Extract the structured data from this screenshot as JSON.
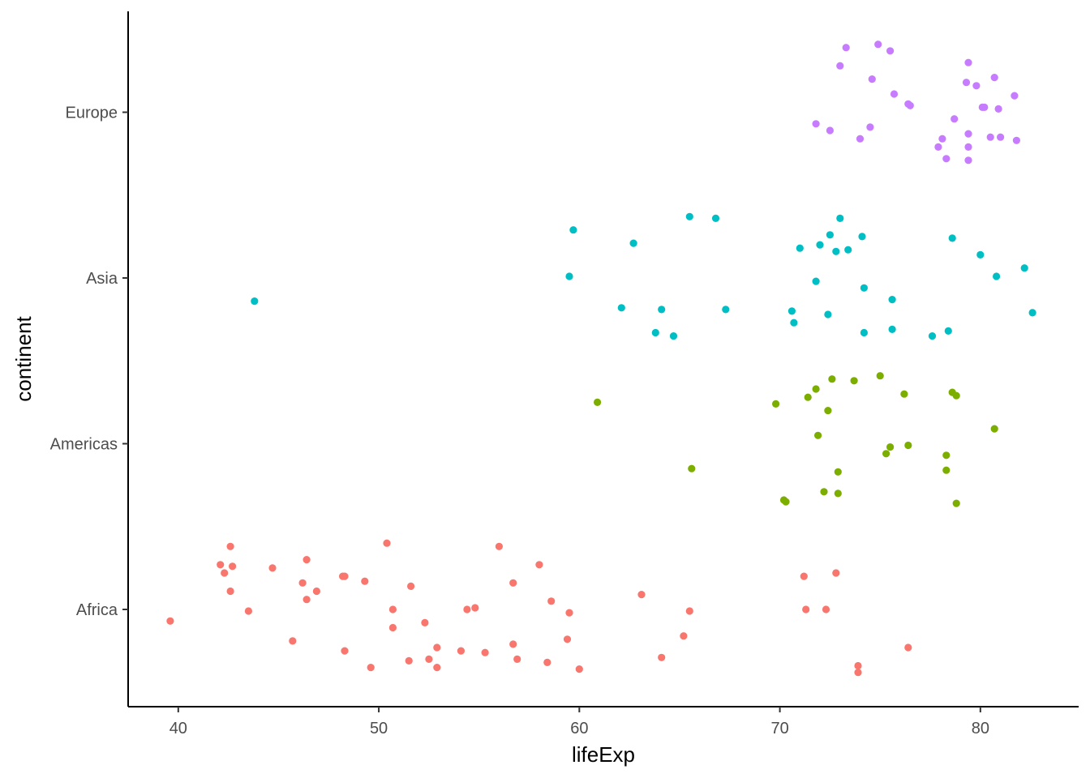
{
  "chart_data": {
    "type": "scatter",
    "jitter": "vertical jitter within each continent category",
    "xlabel": "lifeExp",
    "ylabel": "continent",
    "xlim": [
      37.5,
      84.9
    ],
    "xticks": [
      40,
      50,
      60,
      70,
      80
    ],
    "categories": [
      "Africa",
      "Americas",
      "Asia",
      "Europe"
    ],
    "grid": false,
    "legend": "none",
    "colors": {
      "Africa": "#F8766D",
      "Americas": "#7CAE00",
      "Asia": "#00BFC4",
      "Europe": "#C77CFF"
    },
    "series": [
      {
        "name": "Africa",
        "points": [
          [
            39.6,
            0.93
          ],
          [
            42.1,
            1.27
          ],
          [
            42.3,
            1.22
          ],
          [
            42.6,
            1.38
          ],
          [
            42.6,
            1.11
          ],
          [
            42.7,
            1.26
          ],
          [
            43.5,
            0.99
          ],
          [
            44.7,
            1.25
          ],
          [
            45.7,
            0.81
          ],
          [
            46.2,
            1.16
          ],
          [
            46.4,
            1.06
          ],
          [
            46.4,
            1.3
          ],
          [
            46.9,
            1.11
          ],
          [
            48.2,
            1.2
          ],
          [
            48.3,
            1.2
          ],
          [
            48.3,
            0.75
          ],
          [
            49.3,
            1.17
          ],
          [
            49.6,
            0.65
          ],
          [
            50.4,
            1.4
          ],
          [
            50.7,
            0.89
          ],
          [
            50.7,
            1.0
          ],
          [
            51.5,
            0.69
          ],
          [
            51.6,
            1.14
          ],
          [
            52.3,
            0.92
          ],
          [
            52.5,
            0.7
          ],
          [
            52.9,
            0.77
          ],
          [
            52.9,
            0.65
          ],
          [
            54.1,
            0.75
          ],
          [
            54.4,
            1.0
          ],
          [
            54.8,
            1.01
          ],
          [
            55.3,
            0.74
          ],
          [
            56.0,
            1.38
          ],
          [
            56.7,
            0.79
          ],
          [
            56.7,
            1.16
          ],
          [
            56.9,
            0.7
          ],
          [
            58.0,
            1.27
          ],
          [
            58.4,
            0.68
          ],
          [
            58.6,
            1.05
          ],
          [
            59.4,
            0.82
          ],
          [
            59.5,
            0.98
          ],
          [
            60.0,
            0.64
          ],
          [
            63.1,
            1.09
          ],
          [
            64.1,
            0.71
          ],
          [
            65.2,
            0.84
          ],
          [
            65.5,
            0.99
          ],
          [
            71.2,
            1.2
          ],
          [
            71.3,
            1.0
          ],
          [
            72.3,
            1.0
          ],
          [
            72.8,
            1.22
          ],
          [
            73.9,
            0.66
          ],
          [
            73.9,
            0.62
          ],
          [
            76.4,
            0.77
          ]
        ]
      },
      {
        "name": "Americas",
        "points": [
          [
            60.9,
            2.25
          ],
          [
            65.6,
            1.85
          ],
          [
            69.8,
            2.24
          ],
          [
            70.2,
            1.66
          ],
          [
            70.3,
            1.65
          ],
          [
            71.4,
            2.28
          ],
          [
            71.8,
            2.33
          ],
          [
            71.9,
            2.05
          ],
          [
            72.2,
            1.71
          ],
          [
            72.4,
            2.2
          ],
          [
            72.6,
            2.39
          ],
          [
            72.9,
            1.83
          ],
          [
            72.9,
            1.7
          ],
          [
            73.7,
            2.38
          ],
          [
            75.0,
            2.41
          ],
          [
            75.3,
            1.94
          ],
          [
            75.5,
            1.98
          ],
          [
            76.2,
            2.3
          ],
          [
            76.4,
            1.99
          ],
          [
            78.3,
            1.93
          ],
          [
            78.3,
            1.84
          ],
          [
            78.6,
            2.31
          ],
          [
            78.8,
            2.29
          ],
          [
            78.8,
            1.64
          ],
          [
            80.7,
            2.09
          ]
        ]
      },
      {
        "name": "Asia",
        "points": [
          [
            43.8,
            2.86
          ],
          [
            59.5,
            3.01
          ],
          [
            59.7,
            3.29
          ],
          [
            62.1,
            2.82
          ],
          [
            62.7,
            3.21
          ],
          [
            63.8,
            2.67
          ],
          [
            64.1,
            2.81
          ],
          [
            64.7,
            2.65
          ],
          [
            65.5,
            3.37
          ],
          [
            66.8,
            3.36
          ],
          [
            67.3,
            2.81
          ],
          [
            70.6,
            2.8
          ],
          [
            70.7,
            2.73
          ],
          [
            71.0,
            3.18
          ],
          [
            71.8,
            2.98
          ],
          [
            72.0,
            3.2
          ],
          [
            72.4,
            2.78
          ],
          [
            72.5,
            3.26
          ],
          [
            72.8,
            3.16
          ],
          [
            73.0,
            3.36
          ],
          [
            73.4,
            3.17
          ],
          [
            74.1,
            3.25
          ],
          [
            74.2,
            2.94
          ],
          [
            74.2,
            2.67
          ],
          [
            75.6,
            2.87
          ],
          [
            75.6,
            2.69
          ],
          [
            77.6,
            2.65
          ],
          [
            78.4,
            2.68
          ],
          [
            78.6,
            3.24
          ],
          [
            80.0,
            3.14
          ],
          [
            80.8,
            3.01
          ],
          [
            82.2,
            3.06
          ],
          [
            82.6,
            2.79
          ]
        ]
      },
      {
        "name": "Europe",
        "points": [
          [
            71.8,
            3.93
          ],
          [
            72.5,
            3.89
          ],
          [
            73.0,
            4.28
          ],
          [
            73.3,
            4.39
          ],
          [
            74.0,
            3.84
          ],
          [
            74.5,
            3.91
          ],
          [
            74.6,
            4.2
          ],
          [
            74.9,
            4.41
          ],
          [
            75.5,
            4.37
          ],
          [
            75.7,
            4.11
          ],
          [
            76.4,
            4.05
          ],
          [
            76.5,
            4.04
          ],
          [
            77.9,
            3.79
          ],
          [
            78.1,
            3.84
          ],
          [
            78.3,
            3.72
          ],
          [
            78.7,
            3.96
          ],
          [
            79.3,
            4.18
          ],
          [
            79.4,
            4.3
          ],
          [
            79.4,
            3.87
          ],
          [
            79.4,
            3.79
          ],
          [
            79.4,
            3.71
          ],
          [
            79.8,
            4.16
          ],
          [
            80.1,
            4.03
          ],
          [
            80.2,
            4.03
          ],
          [
            80.5,
            3.85
          ],
          [
            80.7,
            4.21
          ],
          [
            80.9,
            4.02
          ],
          [
            81.0,
            3.85
          ],
          [
            81.7,
            4.1
          ],
          [
            81.8,
            3.83
          ]
        ]
      }
    ]
  }
}
